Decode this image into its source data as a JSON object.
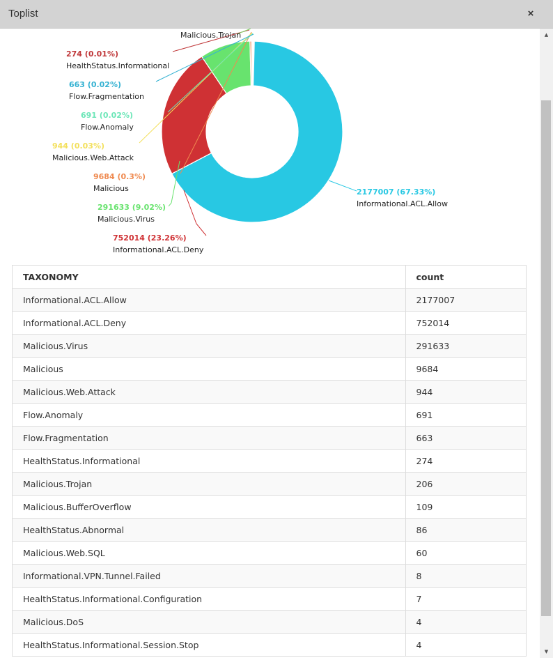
{
  "window": {
    "title": "Toplist",
    "close_label": "×"
  },
  "chart_data": {
    "type": "pie",
    "variant": "donut",
    "slices": [
      {
        "label": "Informational.ACL.Allow",
        "value": 2177007,
        "pct_label": "2177007 (67.33%)",
        "color": "#28c8e3"
      },
      {
        "label": "Informational.ACL.Deny",
        "value": 752014,
        "pct_label": "752014 (23.26%)",
        "color": "#cf3134"
      },
      {
        "label": "Malicious.Virus",
        "value": 291633,
        "pct_label": "291633 (9.02%)",
        "color": "#68e36e"
      },
      {
        "label": "Malicious",
        "value": 9684,
        "pct_label": "9684 (0.3%)",
        "color": "#ef8a50"
      },
      {
        "label": "Malicious.Web.Attack",
        "value": 944,
        "pct_label": "944 (0.03%)",
        "color": "#f3e05c"
      },
      {
        "label": "Flow.Anomaly",
        "value": 691,
        "pct_label": "691 (0.02%)",
        "color": "#6de6b8"
      },
      {
        "label": "Flow.Fragmentation",
        "value": 663,
        "pct_label": "663 (0.02%)",
        "color": "#35b2d2"
      },
      {
        "label": "HealthStatus.Informational",
        "value": 274,
        "pct_label": "274 (0.01%)",
        "color": "#c0393b"
      },
      {
        "label": "Malicious.Trojan",
        "value": 206,
        "pct_label": "",
        "color": "#7ed86a"
      }
    ]
  },
  "table": {
    "headers": [
      "TAXONOMY",
      "count"
    ],
    "rows": [
      [
        "Informational.ACL.Allow",
        "2177007"
      ],
      [
        "Informational.ACL.Deny",
        "752014"
      ],
      [
        "Malicious.Virus",
        "291633"
      ],
      [
        "Malicious",
        "9684"
      ],
      [
        "Malicious.Web.Attack",
        "944"
      ],
      [
        "Flow.Anomaly",
        "691"
      ],
      [
        "Flow.Fragmentation",
        "663"
      ],
      [
        "HealthStatus.Informational",
        "274"
      ],
      [
        "Malicious.Trojan",
        "206"
      ],
      [
        "Malicious.BufferOverflow",
        "109"
      ],
      [
        "HealthStatus.Abnormal",
        "86"
      ],
      [
        "Malicious.Web.SQL",
        "60"
      ],
      [
        "Informational.VPN.Tunnel.Failed",
        "8"
      ],
      [
        "HealthStatus.Informational.Configuration",
        "7"
      ],
      [
        "Malicious.DoS",
        "4"
      ],
      [
        "HealthStatus.Informational.Session.Stop",
        "4"
      ]
    ]
  }
}
